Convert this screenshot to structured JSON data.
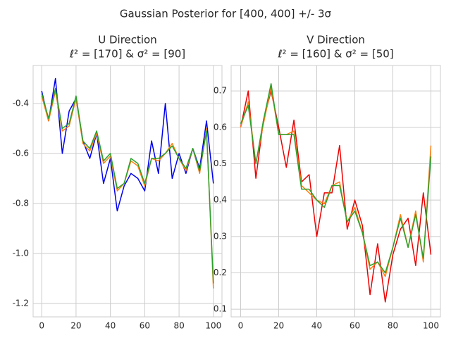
{
  "title": "Gaussian Posterior for [400, 400] +/- 3σ",
  "chart_data": [
    {
      "type": "line",
      "title": "U Direction",
      "subtitle": "ℓ² = [170] & σ² = [90]",
      "x": [
        0,
        4,
        8,
        12,
        16,
        20,
        24,
        28,
        32,
        36,
        40,
        44,
        48,
        52,
        56,
        60,
        64,
        68,
        72,
        76,
        80,
        84,
        88,
        92,
        96,
        100
      ],
      "xlim": [
        -5,
        105
      ],
      "xticks": [
        0,
        20,
        40,
        60,
        80,
        100
      ],
      "ylim": [
        -1.254,
        -0.248
      ],
      "yticks": [
        -1.2,
        {
          "value": -1.0,
          "label": "-1.0"
        },
        -0.8,
        -0.6,
        -0.4
      ],
      "grid": true,
      "series": [
        {
          "color": "#0000ee",
          "values": [
            -0.35,
            -0.47,
            -0.3,
            -0.6,
            -0.43,
            -0.38,
            -0.55,
            -0.62,
            -0.52,
            -0.72,
            -0.62,
            -0.83,
            -0.73,
            -0.68,
            -0.7,
            -0.75,
            -0.55,
            -0.68,
            -0.4,
            -0.7,
            -0.6,
            -0.68,
            -0.58,
            -0.66,
            -0.47,
            -0.72
          ]
        },
        {
          "color": "#ff7f0e",
          "values": [
            -0.37,
            -0.47,
            -0.35,
            -0.51,
            -0.49,
            -0.38,
            -0.56,
            -0.59,
            -0.52,
            -0.64,
            -0.61,
            -0.75,
            -0.72,
            -0.63,
            -0.65,
            -0.73,
            -0.62,
            -0.63,
            -0.6,
            -0.56,
            -0.62,
            -0.67,
            -0.58,
            -0.68,
            -0.5,
            -1.14
          ]
        },
        {
          "color": "#2ca02c",
          "values": [
            -0.36,
            -0.46,
            -0.34,
            -0.5,
            -0.48,
            -0.37,
            -0.55,
            -0.58,
            -0.51,
            -0.63,
            -0.6,
            -0.74,
            -0.72,
            -0.62,
            -0.64,
            -0.72,
            -0.62,
            -0.62,
            -0.6,
            -0.57,
            -0.62,
            -0.66,
            -0.58,
            -0.67,
            -0.51,
            -1.12
          ]
        }
      ]
    },
    {
      "type": "line",
      "title": "V Direction",
      "subtitle": "ℓ² = [160] & σ² = [50]",
      "x": [
        0,
        4,
        8,
        12,
        16,
        20,
        24,
        28,
        32,
        36,
        40,
        44,
        48,
        52,
        56,
        60,
        64,
        68,
        72,
        76,
        80,
        84,
        88,
        92,
        96,
        100
      ],
      "xlim": [
        -5,
        105
      ],
      "xticks": [
        0,
        20,
        40,
        60,
        80,
        100
      ],
      "ylim": [
        0.079,
        0.77
      ],
      "yticks": [
        0.1,
        0.2,
        0.3,
        0.4,
        0.5,
        0.6,
        0.7
      ],
      "grid": true,
      "series": [
        {
          "color": "#ee0000",
          "values": [
            0.6,
            0.7,
            0.46,
            0.62,
            0.7,
            0.6,
            0.49,
            0.62,
            0.45,
            0.47,
            0.3,
            0.42,
            0.42,
            0.55,
            0.32,
            0.4,
            0.33,
            0.14,
            0.28,
            0.12,
            0.25,
            0.32,
            0.35,
            0.22,
            0.42,
            0.25
          ]
        },
        {
          "color": "#ff7f0e",
          "values": [
            0.6,
            0.67,
            0.5,
            0.61,
            0.71,
            0.58,
            0.58,
            0.59,
            0.44,
            0.42,
            0.4,
            0.39,
            0.44,
            0.45,
            0.34,
            0.38,
            0.31,
            0.21,
            0.23,
            0.19,
            0.27,
            0.36,
            0.27,
            0.37,
            0.23,
            0.55
          ]
        },
        {
          "color": "#2ca02c",
          "values": [
            0.61,
            0.66,
            0.5,
            0.62,
            0.72,
            0.58,
            0.58,
            0.58,
            0.43,
            0.43,
            0.4,
            0.38,
            0.44,
            0.44,
            0.34,
            0.37,
            0.31,
            0.22,
            0.23,
            0.2,
            0.27,
            0.35,
            0.27,
            0.36,
            0.24,
            0.52
          ]
        }
      ]
    }
  ]
}
